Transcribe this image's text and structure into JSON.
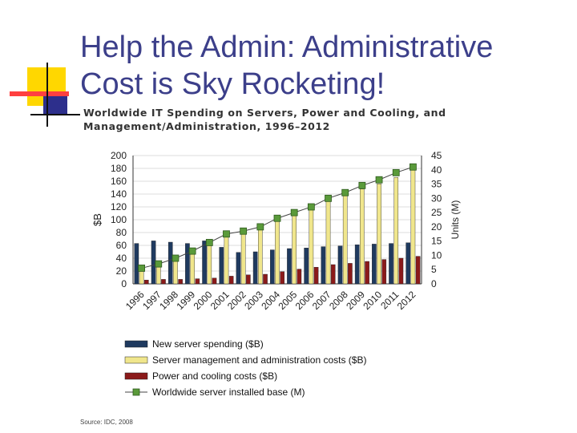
{
  "slide": {
    "title": "Help the Admin: Administrative\nCost is Sky Rocketing!",
    "figure_title": "Worldwide IT Spending on Servers, Power and Cooling, and\nManagement/Administration, 1996–2012",
    "source": "Source: IDC, 2008"
  },
  "colors": {
    "title": "#3c3f8a",
    "new_server": "#1f3a5f",
    "mgmt_admin": "#f0e68c",
    "power_cooling": "#8b1a1a",
    "installed_base": "#5a9a3a",
    "deco_yellow": "#ffd700",
    "deco_blue": "#2d2f8c",
    "deco_red": "#ff4040"
  },
  "chart_data": {
    "type": "bar",
    "title": "Worldwide IT Spending on Servers, Power and Cooling, and Management/Administration, 1996–2012",
    "categories": [
      "1996",
      "1997",
      "1998",
      "1999",
      "2000",
      "2001",
      "2002",
      "2003",
      "2004",
      "2005",
      "2006",
      "2007",
      "2008",
      "2009",
      "2010",
      "2011",
      "2012"
    ],
    "ylabel": "$B",
    "ylabel_right": "Units (M)",
    "ylim": [
      0,
      200
    ],
    "ylim_right": [
      0,
      45
    ],
    "yticks": [
      "0",
      "20",
      "40",
      "60",
      "80",
      "100",
      "120",
      "140",
      "160",
      "180",
      "200"
    ],
    "yticks_right": [
      "0",
      "5",
      "10",
      "15",
      "20",
      "25",
      "30",
      "35",
      "40",
      "45"
    ],
    "series": [
      {
        "name": "New server spending ($B)",
        "axis": "left",
        "kind": "bar",
        "values": [
          63,
          67,
          65,
          63,
          67,
          57,
          49,
          50,
          53,
          55,
          56,
          58,
          59,
          61,
          62,
          63,
          64
        ]
      },
      {
        "name": "Server management and administration costs ($B)",
        "axis": "left",
        "kind": "bar",
        "values": [
          24,
          31,
          40,
          48,
          63,
          76,
          80,
          88,
          102,
          110,
          118,
          130,
          138,
          148,
          156,
          166,
          182
        ]
      },
      {
        "name": "Power and cooling costs ($B)",
        "axis": "left",
        "kind": "bar",
        "values": [
          6,
          7,
          7,
          8,
          9,
          12,
          14,
          15,
          19,
          23,
          26,
          30,
          32,
          35,
          38,
          40,
          43
        ]
      },
      {
        "name": "Worldwide server installed base (M)",
        "axis": "right",
        "kind": "line",
        "values": [
          5.5,
          7,
          9,
          11.5,
          14.5,
          17.5,
          18.5,
          20,
          23,
          25,
          27,
          30,
          32,
          34.5,
          36.5,
          39,
          41
        ]
      }
    ],
    "legend": [
      "New server spending ($B)",
      "Server management and administration costs ($B)",
      "Power and cooling costs ($B)",
      "Worldwide server installed base (M)"
    ],
    "legend_position": "bottom"
  }
}
